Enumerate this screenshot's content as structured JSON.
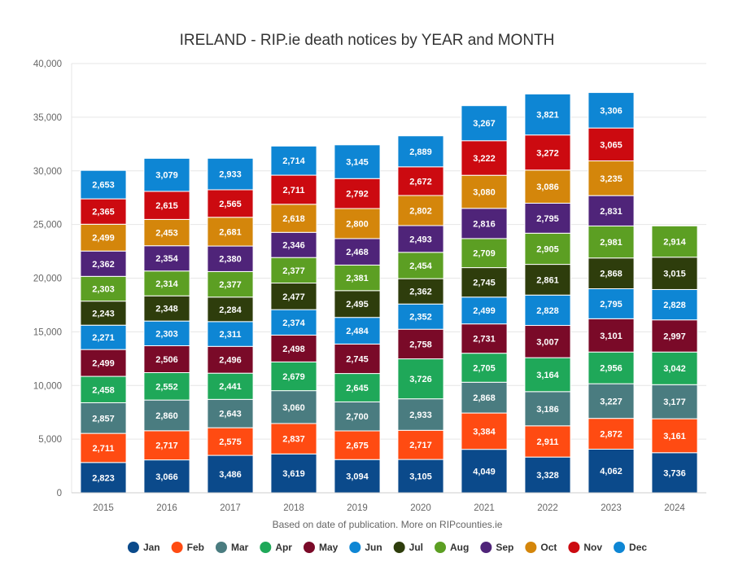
{
  "chart_data": {
    "type": "bar",
    "stacked": true,
    "title": "IRELAND - RIP.ie death notices by YEAR and MONTH",
    "caption": "Based on date of publication. More on RIPcounties.ie",
    "categories": [
      "2015",
      "2016",
      "2017",
      "2018",
      "2019",
      "2020",
      "2021",
      "2022",
      "2023",
      "2024"
    ],
    "ylim": [
      0,
      40000
    ],
    "yticks": [
      0,
      5000,
      10000,
      15000,
      20000,
      25000,
      30000,
      35000,
      40000
    ],
    "ytick_labels": [
      "0",
      "5,000",
      "10,000",
      "15,000",
      "20,000",
      "25,000",
      "30,000",
      "35,000",
      "40,000"
    ],
    "legend_position": "bottom",
    "series": [
      {
        "name": "Jan",
        "color": "#0b4a8b",
        "values": [
          2823,
          3066,
          3486,
          3619,
          3094,
          3105,
          4049,
          3328,
          4062,
          3736
        ]
      },
      {
        "name": "Feb",
        "color": "#ff4b12",
        "values": [
          2711,
          2717,
          2575,
          2837,
          2675,
          2717,
          3384,
          2911,
          2872,
          3161
        ]
      },
      {
        "name": "Mar",
        "color": "#4a7c80",
        "values": [
          2857,
          2860,
          2643,
          3060,
          2700,
          2933,
          2868,
          3186,
          3227,
          3177
        ]
      },
      {
        "name": "Apr",
        "color": "#1fa859",
        "values": [
          2458,
          2552,
          2441,
          2679,
          2645,
          3726,
          2705,
          3164,
          2956,
          3042
        ]
      },
      {
        "name": "May",
        "color": "#7a0a28",
        "values": [
          2499,
          2506,
          2496,
          2498,
          2745,
          2758,
          2731,
          3007,
          3101,
          2997
        ]
      },
      {
        "name": "Jun",
        "color": "#0e86d4",
        "values": [
          2271,
          2303,
          2311,
          2374,
          2484,
          2352,
          2499,
          2828,
          2795,
          2828
        ]
      },
      {
        "name": "Jul",
        "color": "#2e3d0c",
        "values": [
          2243,
          2348,
          2284,
          2477,
          2495,
          2362,
          2745,
          2861,
          2868,
          3015
        ]
      },
      {
        "name": "Aug",
        "color": "#5c9f23",
        "values": [
          2303,
          2314,
          2377,
          2377,
          2381,
          2454,
          2709,
          2905,
          2981,
          2914
        ]
      },
      {
        "name": "Sep",
        "color": "#4f2479",
        "values": [
          2362,
          2354,
          2380,
          2346,
          2468,
          2493,
          2816,
          2795,
          2831,
          null
        ]
      },
      {
        "name": "Oct",
        "color": "#d4860b",
        "values": [
          2499,
          2453,
          2681,
          2618,
          2800,
          2802,
          3080,
          3086,
          3235,
          null
        ]
      },
      {
        "name": "Nov",
        "color": "#cc0a10",
        "values": [
          2365,
          2615,
          2565,
          2711,
          2792,
          2672,
          3222,
          3272,
          3065,
          null
        ]
      },
      {
        "name": "Dec",
        "color": "#0e86d4",
        "values": [
          2653,
          3079,
          2933,
          2714,
          3145,
          2889,
          3267,
          3821,
          3306,
          null
        ]
      }
    ]
  }
}
